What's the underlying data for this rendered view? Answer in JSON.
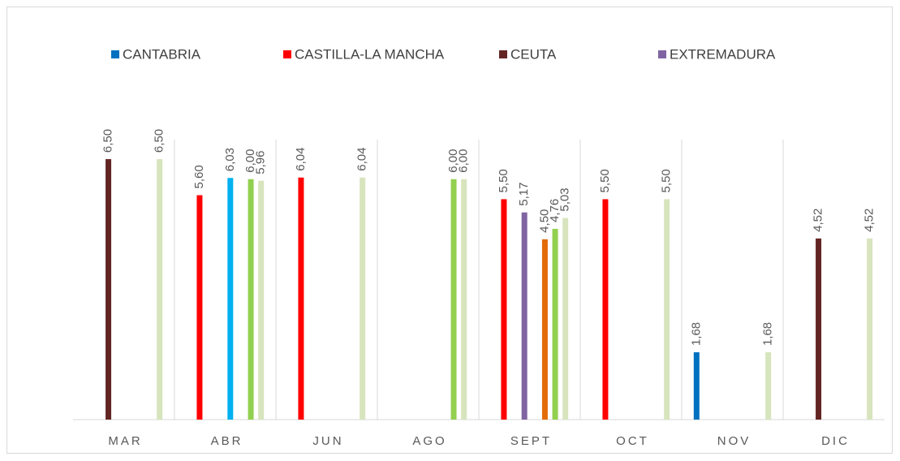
{
  "chart_data": {
    "type": "bar",
    "categories": [
      "MAR",
      "ABR",
      "JUN",
      "AGO",
      "SEPT",
      "OCT",
      "NOV",
      "DIC"
    ],
    "series": [
      {
        "name": "CANTABRIA",
        "color": "#0070c0",
        "values": [
          null,
          null,
          null,
          null,
          null,
          null,
          1.68,
          null
        ],
        "value_labels": [
          null,
          null,
          null,
          null,
          null,
          null,
          "1,68",
          null
        ]
      },
      {
        "name": "CASTILLA-LA MANCHA",
        "color": "#ff0000",
        "values": [
          null,
          5.6,
          6.04,
          null,
          5.5,
          5.5,
          null,
          null
        ],
        "value_labels": [
          null,
          "5,60",
          "6,04",
          null,
          "5,50",
          "5,50",
          null,
          null
        ]
      },
      {
        "name": "CEUTA",
        "color": "#632523",
        "values": [
          6.5,
          null,
          null,
          null,
          null,
          null,
          null,
          4.52
        ],
        "value_labels": [
          "6,50",
          null,
          null,
          null,
          null,
          null,
          null,
          "4,52"
        ]
      },
      {
        "name": "EXTREMADURA",
        "color": "#8064a2",
        "values": [
          null,
          null,
          null,
          null,
          5.17,
          null,
          null,
          null
        ],
        "value_labels": [
          null,
          null,
          null,
          null,
          "5,17",
          null,
          null,
          null
        ]
      },
      {
        "color": "#00b0f0",
        "values": [
          null,
          6.03,
          null,
          null,
          null,
          null,
          null,
          null
        ],
        "value_labels": [
          null,
          "6,03",
          null,
          null,
          null,
          null,
          null,
          null
        ]
      },
      {
        "color": "#e36c09",
        "values": [
          null,
          null,
          null,
          null,
          4.5,
          null,
          null,
          null
        ],
        "value_labels": [
          null,
          null,
          null,
          null,
          "4,50",
          null,
          null,
          null
        ]
      },
      {
        "color": "#92d050",
        "values": [
          null,
          6.0,
          null,
          6.0,
          4.76,
          null,
          null,
          null
        ],
        "value_labels": [
          null,
          "6,00",
          null,
          "6,00",
          "4,76",
          null,
          null,
          null
        ]
      },
      {
        "color": "#d7e4bd",
        "values": [
          6.5,
          5.96,
          6.04,
          6.0,
          5.03,
          5.5,
          1.68,
          4.52
        ],
        "value_labels": [
          "6,50",
          "5,96",
          "6,04",
          "6,00",
          "5,03",
          "5,50",
          "1,68",
          "4,52"
        ]
      }
    ],
    "ylim": [
      0,
      8
    ]
  }
}
